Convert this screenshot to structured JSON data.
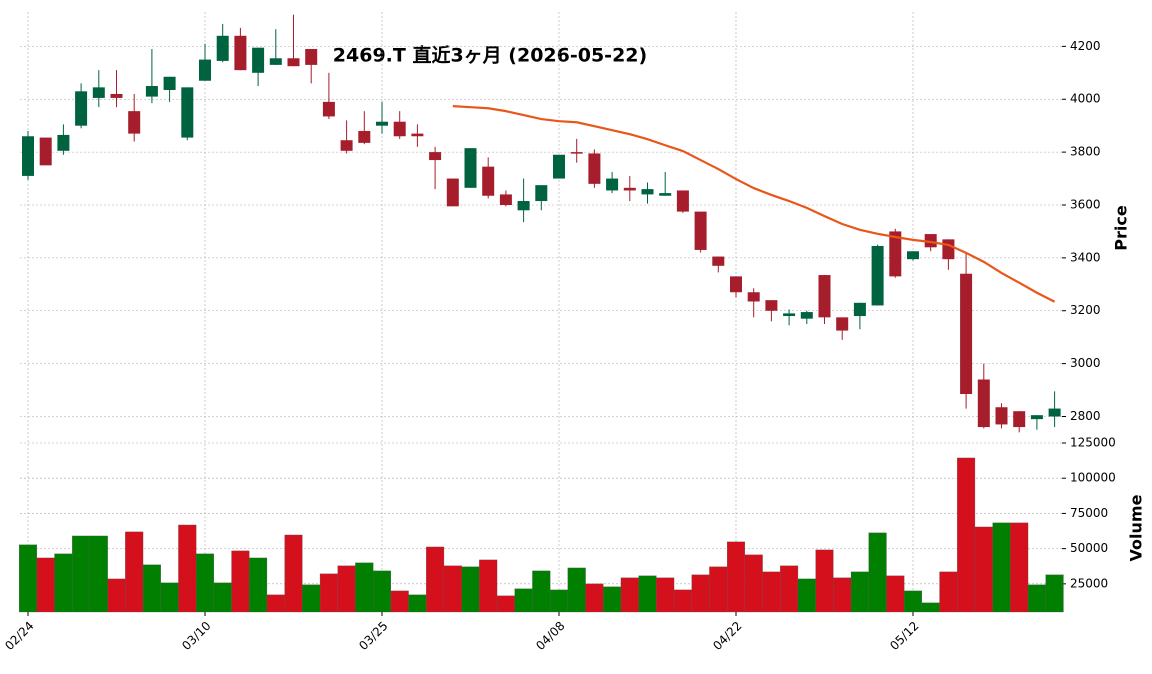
{
  "chart_data": {
    "type": "candlestick",
    "title": "2469.T  直近3ヶ月  (2026-05-22)",
    "y_label": "Price",
    "categories": [
      "02/24",
      null,
      null,
      null,
      null,
      null,
      null,
      null,
      null,
      null,
      "03/10",
      null,
      null,
      null,
      null,
      null,
      null,
      null,
      null,
      null,
      "03/25",
      null,
      null,
      null,
      null,
      null,
      null,
      null,
      null,
      null,
      "04/08",
      null,
      null,
      null,
      null,
      null,
      null,
      null,
      null,
      null,
      "04/22",
      null,
      null,
      null,
      null,
      null,
      null,
      null,
      null,
      null,
      "05/12",
      null,
      null,
      null,
      null,
      null,
      null,
      null,
      null
    ],
    "open": [
      3710,
      3855,
      3805,
      3900,
      4005,
      4020,
      3955,
      4010,
      4035,
      3855,
      4070,
      4145,
      4240,
      4100,
      4130,
      4155,
      4190,
      3990,
      3845,
      3880,
      3900,
      3915,
      3870,
      3800,
      3700,
      3665,
      3745,
      3640,
      3580,
      3615,
      3700,
      3800,
      3795,
      3655,
      3665,
      3640,
      3635,
      3655,
      3575,
      3405,
      3330,
      3270,
      3240,
      3180,
      3170,
      3335,
      3175,
      3180,
      3220,
      3500,
      3395,
      3490,
      3470,
      3340,
      2940,
      2835,
      2820,
      2790,
      2800
    ],
    "high": [
      3880,
      3855,
      3905,
      4060,
      4110,
      4110,
      4020,
      4190,
      4085,
      4045,
      4210,
      4285,
      4270,
      4195,
      4265,
      4320,
      4190,
      4100,
      3920,
      3955,
      3990,
      3955,
      3905,
      3820,
      3700,
      3815,
      3780,
      3655,
      3700,
      3675,
      3790,
      3850,
      3810,
      3725,
      3710,
      3685,
      3725,
      3655,
      3575,
      3405,
      3330,
      3285,
      3240,
      3205,
      3200,
      3335,
      3175,
      3230,
      3450,
      3510,
      3425,
      3490,
      3470,
      3420,
      3000,
      2850,
      2820,
      2805,
      2895
    ],
    "low": [
      3695,
      3750,
      3790,
      3890,
      3970,
      3970,
      3840,
      3985,
      3990,
      3845,
      4070,
      4140,
      4110,
      4050,
      4130,
      4125,
      4060,
      3925,
      3795,
      3830,
      3870,
      3850,
      3820,
      3660,
      3595,
      3665,
      3625,
      3595,
      3535,
      3580,
      3700,
      3760,
      3665,
      3645,
      3615,
      3605,
      3635,
      3570,
      3420,
      3345,
      3250,
      3175,
      3160,
      3145,
      3150,
      3150,
      3090,
      3130,
      3220,
      3325,
      3390,
      3425,
      3355,
      2830,
      2755,
      2755,
      2740,
      2750,
      2760
    ],
    "close": [
      3860,
      3750,
      3865,
      4030,
      4045,
      4005,
      3870,
      4050,
      4085,
      4045,
      4150,
      4240,
      4110,
      4195,
      4155,
      4125,
      4130,
      3935,
      3805,
      3835,
      3915,
      3860,
      3860,
      3770,
      3595,
      3815,
      3635,
      3600,
      3615,
      3675,
      3790,
      3795,
      3680,
      3700,
      3655,
      3660,
      3645,
      3575,
      3430,
      3370,
      3270,
      3235,
      3200,
      3190,
      3195,
      3175,
      3125,
      3230,
      3445,
      3330,
      3425,
      3440,
      3395,
      2885,
      2760,
      2770,
      2760,
      2805,
      2830
    ],
    "up_color": "#00633f",
    "down_color": "#a61d2b",
    "ylim": [
      2730,
      4330
    ],
    "yticks": [
      2800,
      3000,
      3200,
      3400,
      3600,
      3800,
      4000,
      4200
    ],
    "grid": true,
    "ma": {
      "color": "#e8561a",
      "values": [
        null,
        null,
        null,
        null,
        null,
        null,
        null,
        null,
        null,
        null,
        null,
        null,
        null,
        null,
        null,
        null,
        null,
        null,
        null,
        null,
        null,
        null,
        null,
        null,
        3974,
        3970,
        3966,
        3955,
        3940,
        3925,
        3917,
        3913,
        3898,
        3883,
        3868,
        3849,
        3826,
        3804,
        3770,
        3736,
        3698,
        3664,
        3638,
        3615,
        3589,
        3558,
        3528,
        3506,
        3491,
        3479,
        3468,
        3460,
        3449,
        3419,
        3385,
        3343,
        3306,
        3268,
        3234
      ]
    },
    "volume": {
      "label": "Volume",
      "up_color": "#007f00",
      "down_color": "#d4101c",
      "ylim": [
        5000,
        125000
      ],
      "yticks": [
        25000,
        50000,
        75000,
        100000,
        125000
      ],
      "values": [
        52700,
        43400,
        46300,
        59000,
        59000,
        28500,
        61900,
        38500,
        25700,
        66800,
        46300,
        25700,
        48400,
        43400,
        17200,
        59700,
        24300,
        32100,
        37800,
        39900,
        34200,
        20000,
        17200,
        51200,
        37800,
        37100,
        42000,
        16500,
        21500,
        34200,
        20700,
        36300,
        25000,
        22900,
        29300,
        30700,
        29300,
        20700,
        31400,
        37100,
        54800,
        45600,
        33500,
        37800,
        28500,
        49100,
        29300,
        33500,
        61200,
        30700,
        20000,
        11500,
        33500,
        114400,
        65400,
        68300,
        68300,
        24300,
        31400
      ]
    }
  }
}
